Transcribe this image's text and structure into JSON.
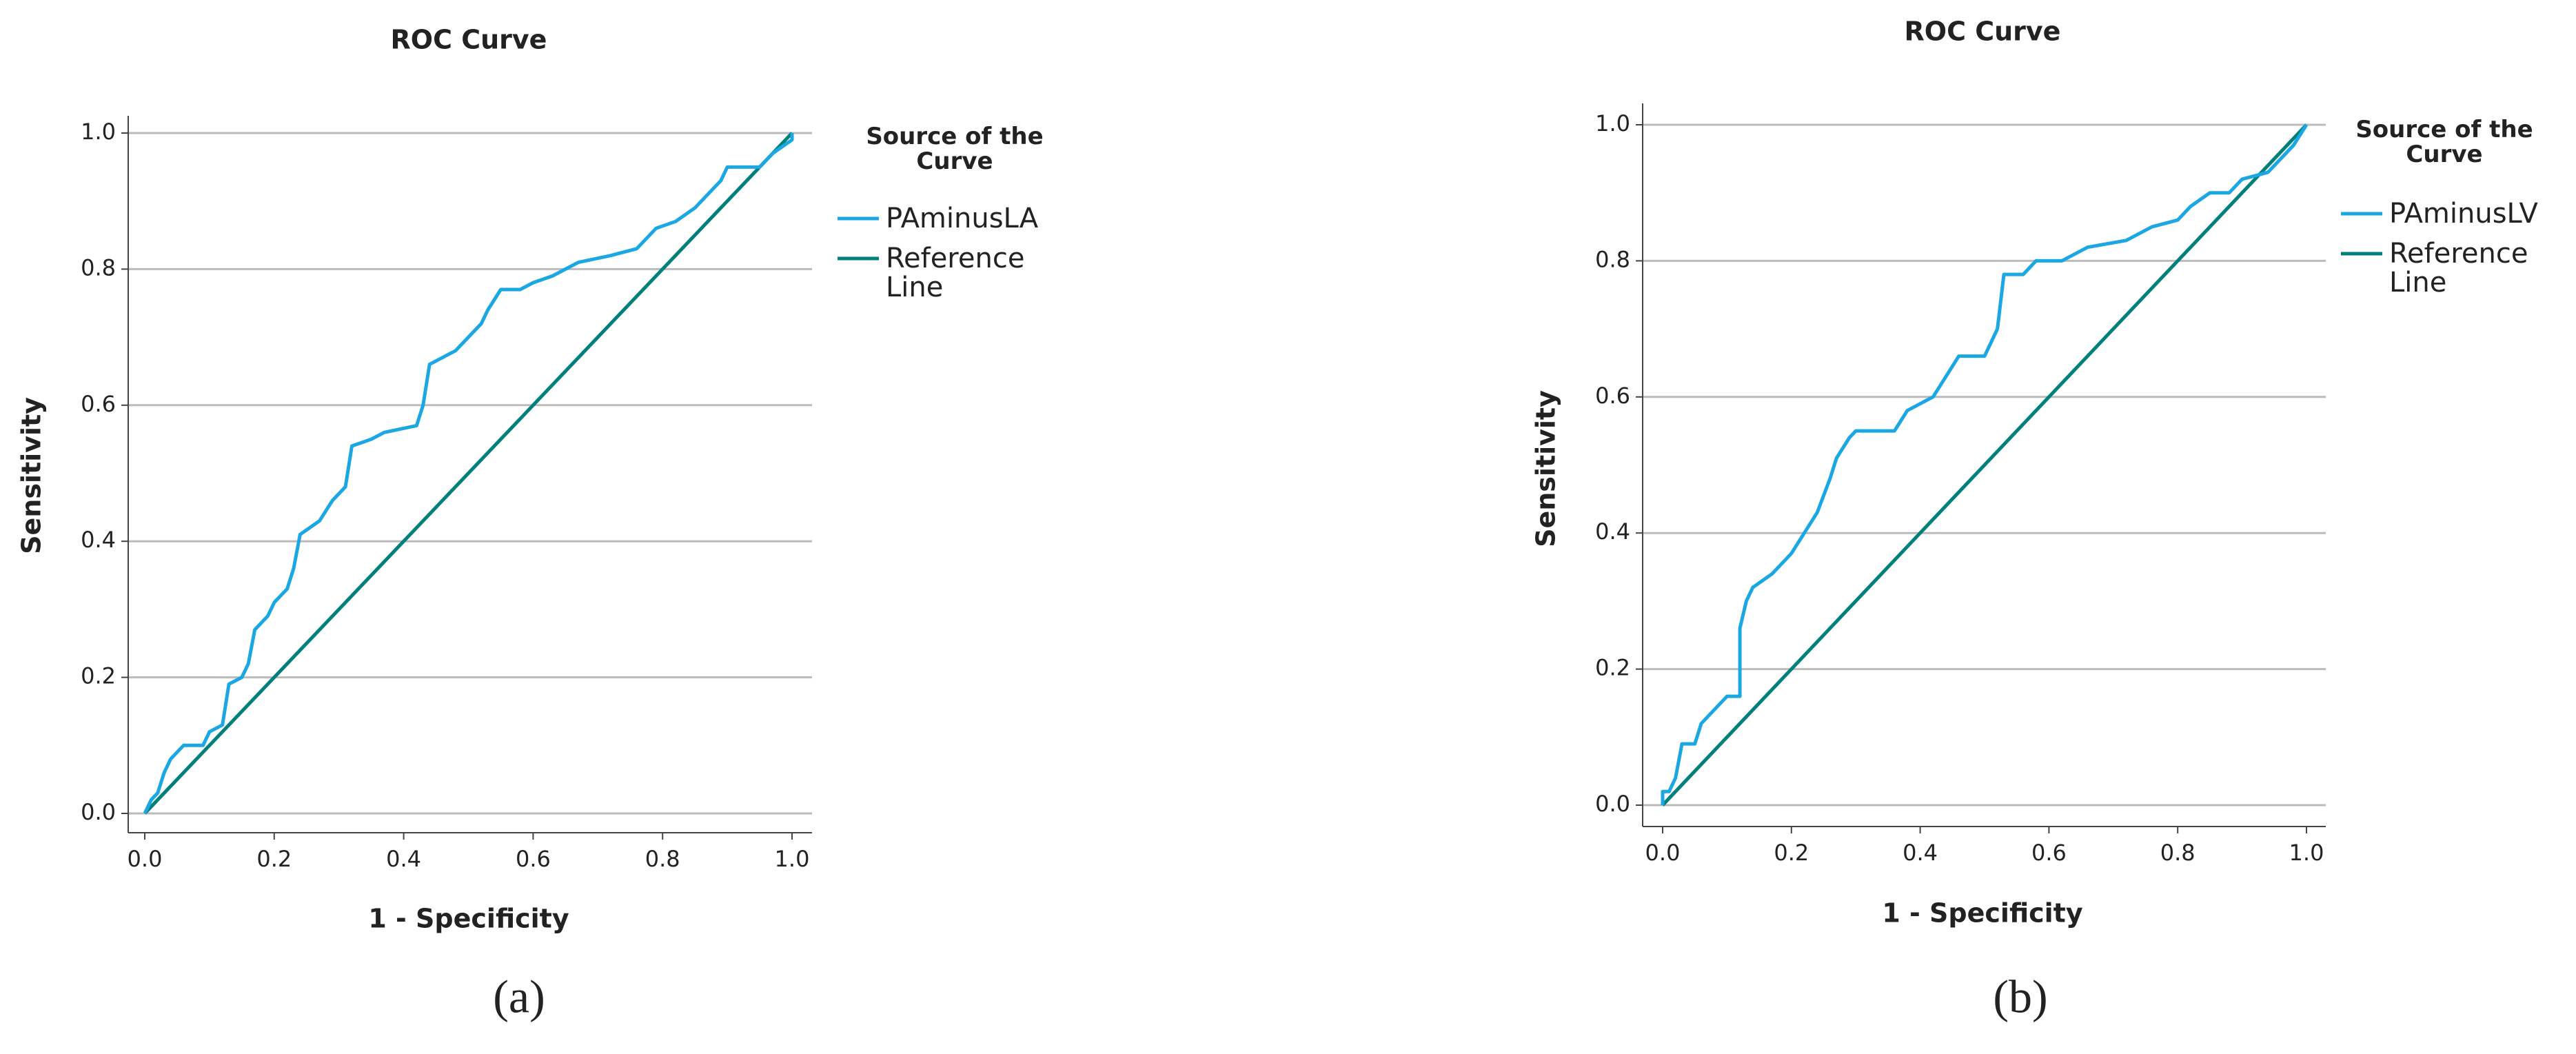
{
  "chart_data": [
    {
      "type": "line",
      "title": "ROC Curve",
      "xlabel": "1 - Specificity",
      "ylabel": "Sensitivity",
      "legend_title": "Source of the Curve",
      "caption": "(a)",
      "grid": true,
      "xlim": [
        0,
        1
      ],
      "ylim": [
        0,
        1
      ],
      "xticks": [
        {
          "value": 0,
          "label": "0.0"
        },
        0.2,
        0.4,
        0.6,
        0.8,
        {
          "value": 1,
          "label": "1.0"
        }
      ],
      "yticks": [
        {
          "value": 0,
          "label": "0.0"
        },
        0.2,
        0.4,
        0.6,
        0.8,
        {
          "value": 1,
          "label": "1.0"
        }
      ],
      "series": [
        {
          "name": "PAminusLA",
          "color": "#1aa7e3",
          "x": [
            0,
            0.01,
            0.02,
            0.03,
            0.04,
            0.06,
            0.09,
            0.1,
            0.12,
            0.13,
            0.15,
            0.16,
            0.17,
            0.19,
            0.2,
            0.22,
            0.23,
            0.24,
            0.27,
            0.29,
            0.31,
            0.32,
            0.35,
            0.37,
            0.42,
            0.43,
            0.44,
            0.46,
            0.48,
            0.5,
            0.52,
            0.53,
            0.55,
            0.58,
            0.6,
            0.63,
            0.65,
            0.67,
            0.72,
            0.76,
            0.79,
            0.82,
            0.85,
            0.87,
            0.89,
            0.9,
            0.95,
            0.97,
            1,
            1
          ],
          "values": [
            0,
            0.02,
            0.03,
            0.06,
            0.08,
            0.1,
            0.1,
            0.12,
            0.13,
            0.19,
            0.2,
            0.22,
            0.27,
            0.29,
            0.31,
            0.33,
            0.36,
            0.41,
            0.43,
            0.46,
            0.48,
            0.54,
            0.55,
            0.56,
            0.57,
            0.6,
            0.66,
            0.67,
            0.68,
            0.7,
            0.72,
            0.74,
            0.77,
            0.77,
            0.78,
            0.79,
            0.8,
            0.81,
            0.82,
            0.83,
            0.86,
            0.87,
            0.89,
            0.91,
            0.93,
            0.95,
            0.95,
            0.97,
            0.99,
            1
          ]
        },
        {
          "name": "Reference Line",
          "color": "#00807a",
          "x": [
            0,
            1
          ],
          "values": [
            0,
            1
          ]
        }
      ]
    },
    {
      "type": "line",
      "title": "ROC Curve",
      "xlabel": "1 - Specificity",
      "ylabel": "Sensitivity",
      "legend_title": "Source of the Curve",
      "caption": "(b)",
      "grid": true,
      "xlim": [
        0,
        1
      ],
      "ylim": [
        0,
        1
      ],
      "xticks": [
        {
          "value": 0,
          "label": "0.0"
        },
        0.2,
        0.4,
        0.6,
        0.8,
        {
          "value": 1,
          "label": "1.0"
        }
      ],
      "yticks": [
        {
          "value": 0,
          "label": "0.0"
        },
        0.2,
        0.4,
        0.6,
        0.8,
        {
          "value": 1,
          "label": "1.0"
        }
      ],
      "series": [
        {
          "name": "PAminusLV",
          "color": "#1aa7e3",
          "x": [
            0,
            0,
            0.01,
            0.02,
            0.03,
            0.05,
            0.06,
            0.08,
            0.1,
            0.12,
            0.12,
            0.13,
            0.14,
            0.17,
            0.2,
            0.22,
            0.24,
            0.26,
            0.27,
            0.29,
            0.3,
            0.36,
            0.38,
            0.42,
            0.44,
            0.46,
            0.5,
            0.52,
            0.53,
            0.56,
            0.58,
            0.62,
            0.66,
            0.72,
            0.76,
            0.8,
            0.82,
            0.85,
            0.88,
            0.9,
            0.94,
            0.96,
            0.98,
            1
          ],
          "values": [
            0,
            0.02,
            0.02,
            0.04,
            0.09,
            0.09,
            0.12,
            0.14,
            0.16,
            0.16,
            0.26,
            0.3,
            0.32,
            0.34,
            0.37,
            0.4,
            0.43,
            0.48,
            0.51,
            0.54,
            0.55,
            0.55,
            0.58,
            0.6,
            0.63,
            0.66,
            0.66,
            0.7,
            0.78,
            0.78,
            0.8,
            0.8,
            0.82,
            0.83,
            0.85,
            0.86,
            0.88,
            0.9,
            0.9,
            0.92,
            0.93,
            0.95,
            0.97,
            1
          ]
        },
        {
          "name": "Reference Line",
          "color": "#00807a",
          "x": [
            0,
            1
          ],
          "values": [
            0,
            1
          ]
        }
      ]
    }
  ]
}
